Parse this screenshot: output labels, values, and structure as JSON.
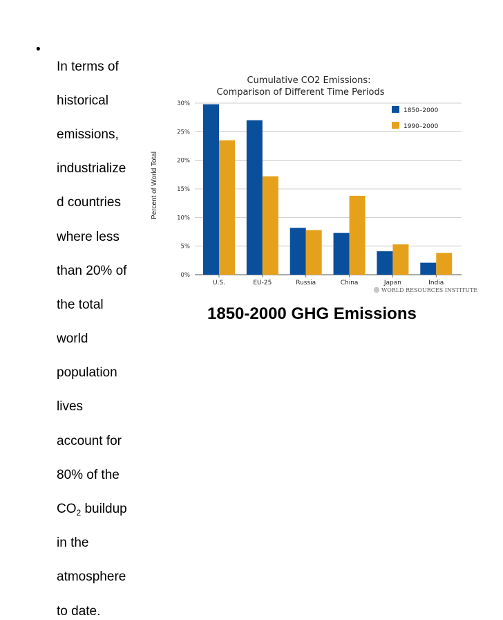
{
  "slide": {
    "bullet_marker": "•",
    "bullet_lines_before": [
      "In terms of",
      "historical",
      "emissions,",
      "industrialize",
      "d countries",
      "where less",
      "than 20% of",
      "the total",
      "world",
      "population",
      "lives",
      "account for",
      "80% of the"
    ],
    "co2_prefix": "CO",
    "co2_subscript": "2",
    "co2_suffix": " buildup",
    "bullet_lines_after": [
      "in the",
      "atmosphere",
      "to date."
    ],
    "caption": "1850-2000 GHG Emissions"
  },
  "chart_data": {
    "type": "bar",
    "title": "Cumulative CO2 Emissions:",
    "subtitle": "Comparison of Different Time Periods",
    "ylabel": "Percent of World Total",
    "xlabel": "",
    "categories": [
      "U.S.",
      "EU-25",
      "Russia",
      "China",
      "Japan",
      "India"
    ],
    "series": [
      {
        "name": "1850–2000",
        "color": "#0a4f9c",
        "values": [
          29.8,
          27.0,
          8.2,
          7.3,
          4.1,
          2.1
        ]
      },
      {
        "name": "1990–2000",
        "color": "#e6a11c",
        "values": [
          23.5,
          17.2,
          7.8,
          13.8,
          5.3,
          3.8
        ]
      }
    ],
    "ylim": [
      0,
      30
    ],
    "yticks": [
      0,
      5,
      10,
      15,
      20,
      25,
      30
    ],
    "ytick_labels": [
      "0%",
      "5%",
      "10%",
      "15%",
      "20%",
      "25%",
      "30%"
    ],
    "legend_position": "top-right",
    "grid": true,
    "source": "WORLD RESOURCES INSTITUTE"
  }
}
